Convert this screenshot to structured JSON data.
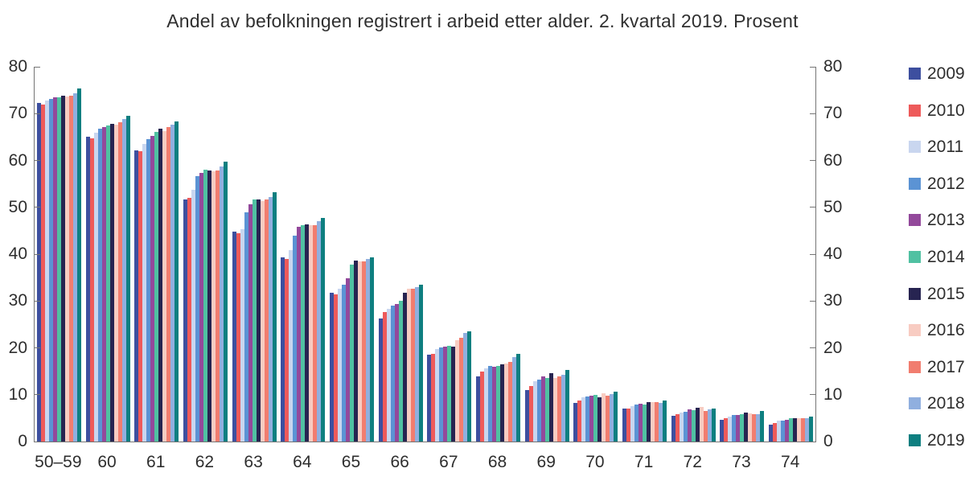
{
  "title": "Andel av befolkningen registrert i arbeid etter alder. 2. kvartal 2019. Prosent",
  "chart_data": {
    "type": "bar",
    "title": "Andel av befolkningen registrert i arbeid etter alder. 2. kvartal 2019. Prosent",
    "xlabel": "",
    "ylabel": "",
    "ylim": [
      0,
      80
    ],
    "y_ticks": [
      0,
      10,
      20,
      30,
      40,
      50,
      60,
      70,
      80
    ],
    "grid": "off",
    "legend_position": "right",
    "axes_note": "identical y-axes on left and right, ticks every 10",
    "categories": [
      "50–59",
      "60",
      "61",
      "62",
      "63",
      "64",
      "65",
      "66",
      "67",
      "68",
      "69",
      "70",
      "71",
      "72",
      "73",
      "74"
    ],
    "series": [
      {
        "name": "2009",
        "color": "#3D4F9F",
        "values": [
          72.3,
          65.0,
          62.2,
          51.7,
          44.8,
          39.3,
          31.8,
          26.3,
          18.5,
          13.9,
          11.0,
          8.2,
          7.0,
          5.5,
          4.6,
          3.6
        ]
      },
      {
        "name": "2010",
        "color": "#EE5A5A",
        "values": [
          72.0,
          64.8,
          61.9,
          52.0,
          44.4,
          39.0,
          31.5,
          27.6,
          18.7,
          14.9,
          11.8,
          8.8,
          7.1,
          5.9,
          5.0,
          3.9
        ]
      },
      {
        "name": "2011",
        "color": "#C9D6EF",
        "values": [
          72.8,
          65.9,
          63.6,
          53.7,
          45.3,
          40.9,
          32.6,
          28.4,
          19.8,
          15.6,
          12.9,
          9.4,
          7.5,
          6.1,
          5.4,
          4.4
        ]
      },
      {
        "name": "2012",
        "color": "#5B93D4",
        "values": [
          73.1,
          66.8,
          64.5,
          56.6,
          49.0,
          43.9,
          33.4,
          29.0,
          20.1,
          16.1,
          13.3,
          9.7,
          7.9,
          6.4,
          5.6,
          4.5
        ]
      },
      {
        "name": "2013",
        "color": "#93499B",
        "values": [
          73.4,
          67.2,
          65.2,
          57.4,
          50.7,
          45.9,
          34.9,
          29.4,
          20.3,
          15.9,
          13.9,
          9.8,
          8.0,
          6.9,
          5.7,
          4.7
        ]
      },
      {
        "name": "2014",
        "color": "#50C1A2",
        "values": [
          73.5,
          67.5,
          66.1,
          58.1,
          51.7,
          46.2,
          37.8,
          30.1,
          20.5,
          16.2,
          13.6,
          9.9,
          7.9,
          6.7,
          5.8,
          5.0
        ]
      },
      {
        "name": "2015",
        "color": "#272451",
        "values": [
          73.9,
          67.8,
          66.7,
          57.9,
          51.6,
          46.3,
          38.6,
          31.7,
          20.3,
          16.4,
          14.6,
          9.5,
          8.4,
          7.2,
          6.2,
          4.9
        ]
      },
      {
        "name": "2016",
        "color": "#F8CCC2",
        "values": [
          73.7,
          67.6,
          66.3,
          57.6,
          51.4,
          46.1,
          38.4,
          32.6,
          21.7,
          16.6,
          13.6,
          10.3,
          8.5,
          7.4,
          6.0,
          4.9
        ]
      },
      {
        "name": "2017",
        "color": "#F17D6F",
        "values": [
          73.9,
          68.2,
          67.1,
          57.8,
          51.6,
          46.2,
          38.5,
          32.7,
          22.1,
          17.0,
          13.9,
          9.8,
          8.4,
          6.5,
          5.8,
          4.9
        ]
      },
      {
        "name": "2018",
        "color": "#90AFDF",
        "values": [
          74.4,
          68.8,
          67.6,
          58.7,
          52.2,
          47.0,
          38.9,
          33.0,
          23.1,
          18.0,
          14.3,
          10.2,
          8.3,
          6.8,
          5.8,
          5.0
        ]
      },
      {
        "name": "2019",
        "color": "#0E7F80",
        "values": [
          75.3,
          69.5,
          68.3,
          59.7,
          53.3,
          47.8,
          39.3,
          33.4,
          23.6,
          18.8,
          15.3,
          10.6,
          8.7,
          7.0,
          6.6,
          5.3
        ]
      }
    ]
  }
}
